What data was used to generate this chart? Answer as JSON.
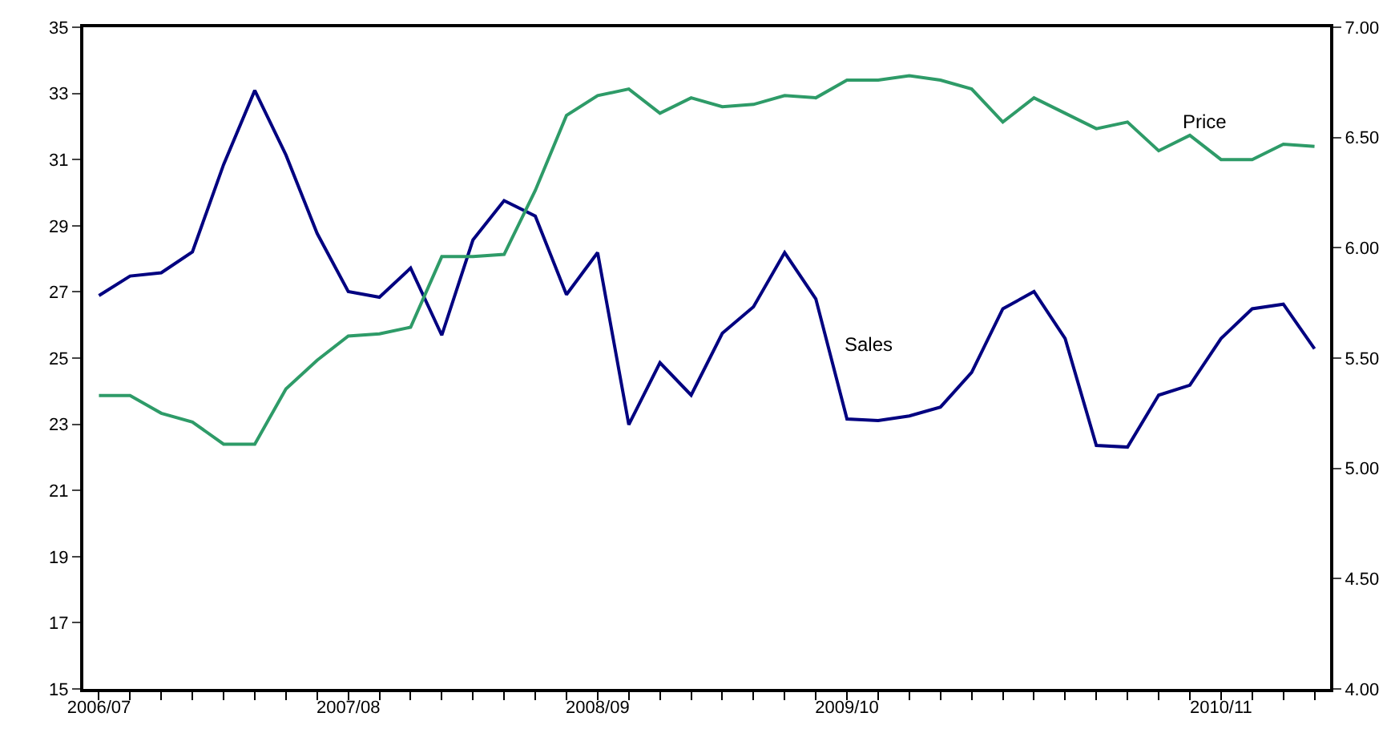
{
  "chart_data": {
    "type": "line",
    "categories": [
      "2006/07",
      null,
      null,
      null,
      null,
      null,
      null,
      null,
      "2007/08",
      null,
      null,
      null,
      null,
      null,
      null,
      null,
      "2008/09",
      null,
      null,
      null,
      null,
      null,
      null,
      null,
      "2009/10",
      null,
      null,
      null,
      null,
      null,
      null,
      null,
      null,
      null,
      null,
      null,
      "2010/11",
      null,
      null,
      null
    ],
    "series": [
      {
        "name": "Sales",
        "color": "#000080",
        "axis": "y",
        "values": [
          26.89,
          27.48,
          27.58,
          28.21,
          30.85,
          33.09,
          31.14,
          28.77,
          27.01,
          26.84,
          27.72,
          25.69,
          28.57,
          29.76,
          29.29,
          26.92,
          28.19,
          22.99,
          24.86,
          23.88,
          25.75,
          26.55,
          28.19,
          26.79,
          23.16,
          23.11,
          23.25,
          23.52,
          24.57,
          26.49,
          27.01,
          25.59,
          22.36,
          22.31,
          23.88,
          24.18,
          25.59,
          26.49,
          26.63,
          25.28
        ]
      },
      {
        "name": "Price",
        "color": "#2e9b68",
        "axis": "y2",
        "values": [
          5.33,
          5.33,
          5.25,
          5.21,
          5.11,
          5.11,
          5.36,
          5.49,
          5.6,
          5.61,
          5.64,
          5.96,
          5.96,
          5.97,
          6.26,
          6.6,
          6.69,
          6.72,
          6.61,
          6.68,
          6.64,
          6.65,
          6.69,
          6.68,
          6.76,
          6.76,
          6.78,
          6.76,
          6.72,
          6.57,
          6.68,
          6.61,
          6.54,
          6.57,
          6.44,
          6.51,
          6.4,
          6.4,
          6.47,
          6.46
        ]
      }
    ],
    "ylim": [
      15,
      35
    ],
    "yticks": [
      15,
      17,
      19,
      21,
      23,
      25,
      27,
      29,
      31,
      33,
      35
    ],
    "y2lim": [
      4,
      7
    ],
    "y2ticks": [
      {
        "value": 4,
        "label": "4.00"
      },
      {
        "value": 4.5,
        "label": "4.50"
      },
      {
        "value": 5,
        "label": "5.00"
      },
      {
        "value": 5.5,
        "label": "5.50"
      },
      {
        "value": 6,
        "label": "6.00"
      },
      {
        "value": 6.5,
        "label": "6.50"
      },
      {
        "value": 7,
        "label": "7.00"
      }
    ],
    "legend": false,
    "marker": "none",
    "line_style": "solid"
  }
}
